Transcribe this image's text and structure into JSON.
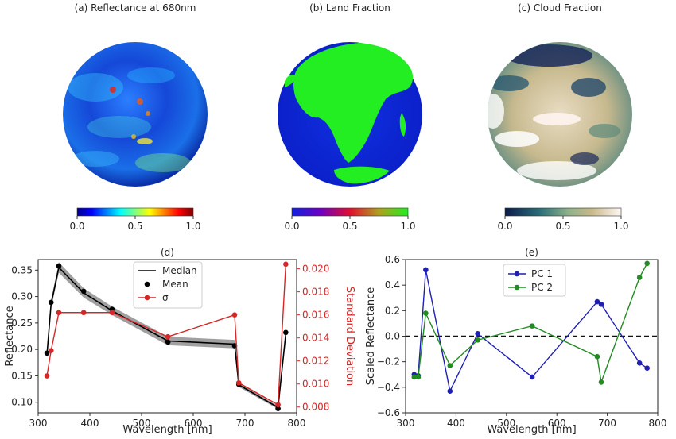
{
  "panels": {
    "a": {
      "title": "(a) Reflectance at 680nm",
      "cbar_ticks": [
        "0.0",
        "0.5",
        "1.0"
      ]
    },
    "b": {
      "title": "(b) Land Fraction",
      "cbar_ticks": [
        "0.0",
        "0.5",
        "1.0"
      ]
    },
    "c": {
      "title": "(c) Cloud Fraction",
      "cbar_ticks": [
        "0.0",
        "0.5",
        "1.0"
      ]
    }
  },
  "chart_data": [
    {
      "type": "line",
      "title": "(d)",
      "xlabel": "Wavelength [nm]",
      "ylabel": "Reflectance",
      "ylabel_right": "Standard Deviation",
      "xlim": [
        300,
        800
      ],
      "ylim": [
        0.08,
        0.37
      ],
      "ylim_right": [
        0.0075,
        0.0208
      ],
      "x_ticks": [
        "300",
        "400",
        "500",
        "600",
        "700",
        "800"
      ],
      "y_ticks": [
        "0.10",
        "0.15",
        "0.20",
        "0.25",
        "0.30",
        "0.35"
      ],
      "y_ticks_right": [
        "0.008",
        "0.010",
        "0.012",
        "0.014",
        "0.016",
        "0.018",
        "0.020"
      ],
      "x": [
        317,
        325,
        340,
        388,
        443,
        551,
        680,
        688,
        764,
        779
      ],
      "series": [
        {
          "name": "Median",
          "axis": "left",
          "color": "#000000",
          "values": [
            0.19,
            0.286,
            0.355,
            0.307,
            0.273,
            0.216,
            0.21,
            0.133,
            0.09,
            0.23
          ],
          "band": [
            0.007,
            0.008,
            0.01,
            0.009,
            0.008,
            0.008,
            0.008,
            0.004,
            0.003,
            0.004
          ]
        },
        {
          "name": "Mean",
          "axis": "left",
          "color": "#000000",
          "values": [
            0.193,
            0.289,
            0.358,
            0.31,
            0.276,
            0.214,
            0.207,
            0.134,
            0.088,
            0.232
          ]
        },
        {
          "name": "σ",
          "axis": "right",
          "color": "#d62728",
          "values": [
            0.0107,
            0.0129,
            0.0162,
            0.0162,
            0.0162,
            0.0141,
            0.016,
            0.0101,
            0.0082,
            0.0204
          ]
        }
      ],
      "legend_position": "top-center"
    },
    {
      "type": "line",
      "title": "(e)",
      "xlabel": "Wavelength [nm]",
      "ylabel": "Scaled Reflectance",
      "xlim": [
        300,
        800
      ],
      "ylim": [
        -0.6,
        0.6
      ],
      "x_ticks": [
        "300",
        "400",
        "500",
        "600",
        "700",
        "800"
      ],
      "y_ticks": [
        "−0.6",
        "−0.4",
        "−0.2",
        "0.0",
        "0.2",
        "0.4",
        "0.6"
      ],
      "x": [
        317,
        325,
        340,
        388,
        443,
        551,
        680,
        688,
        764,
        779
      ],
      "series": [
        {
          "name": "PC 1",
          "color": "#1f1fb4",
          "values": [
            -0.3,
            -0.31,
            0.52,
            -0.43,
            0.02,
            -0.32,
            0.27,
            0.25,
            -0.21,
            -0.25
          ]
        },
        {
          "name": "PC 2",
          "color": "#228b22",
          "values": [
            -0.32,
            -0.32,
            0.18,
            -0.23,
            -0.03,
            0.08,
            -0.16,
            -0.36,
            0.46,
            0.57
          ]
        }
      ],
      "reference_line": 0.0,
      "legend_position": "top-left"
    }
  ]
}
